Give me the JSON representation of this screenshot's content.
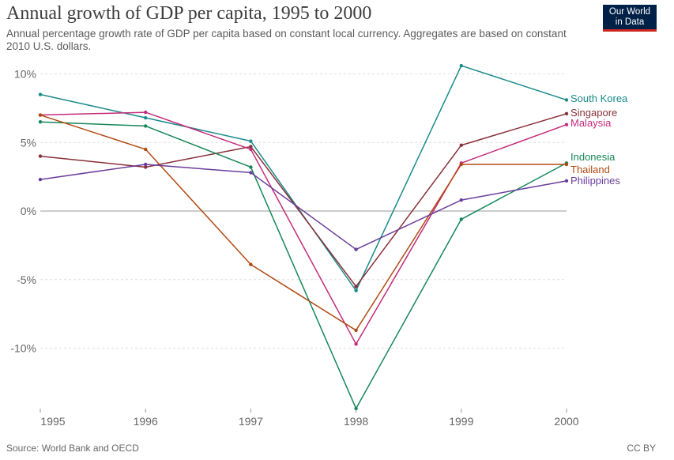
{
  "header": {
    "title": "Annual growth of GDP per capita, 1995 to 2000",
    "subtitle": "Annual percentage growth rate of GDP per capita based on constant local currency. Aggregates are based on constant 2010 U.S. dollars.",
    "logo_line1": "Our World",
    "logo_line2": "in Data"
  },
  "footer": {
    "source": "Source: World Bank and OECD",
    "license": "CC BY"
  },
  "chart_data": {
    "type": "line",
    "title": "Annual growth of GDP per capita, 1995 to 2000",
    "xlabel": "",
    "ylabel": "",
    "x": [
      1995,
      1996,
      1997,
      1998,
      1999,
      2000
    ],
    "x_tick_labels": [
      "1995",
      "1996",
      "1997",
      "1998",
      "1999",
      "2000"
    ],
    "y_ticks": [
      10,
      5,
      0,
      -5,
      -10
    ],
    "y_tick_labels": [
      "10%",
      "5%",
      "0%",
      "-5%",
      "-10%"
    ],
    "ylim": [
      -14.4,
      10.3
    ],
    "grid": true,
    "series": [
      {
        "name": "South Korea",
        "color": "#1a8a8a",
        "values": [
          8.5,
          6.8,
          5.1,
          -5.8,
          10.6,
          8.1
        ]
      },
      {
        "name": "Singapore",
        "color": "#883039",
        "values": [
          4.0,
          3.2,
          4.7,
          -5.5,
          4.8,
          7.1
        ]
      },
      {
        "name": "Malaysia",
        "color": "#c42b7a",
        "values": [
          7.0,
          7.2,
          4.5,
          -9.7,
          3.5,
          6.3
        ]
      },
      {
        "name": "Indonesia",
        "color": "#16875a",
        "values": [
          6.5,
          6.2,
          3.2,
          -14.4,
          -0.6,
          3.5
        ]
      },
      {
        "name": "Thailand",
        "color": "#b14a12",
        "values": [
          7.0,
          4.5,
          -3.9,
          -8.7,
          3.4,
          3.4
        ]
      },
      {
        "name": "Philippines",
        "color": "#6b3d9a",
        "values": [
          2.3,
          3.4,
          2.8,
          -2.8,
          0.8,
          2.2
        ]
      }
    ]
  }
}
